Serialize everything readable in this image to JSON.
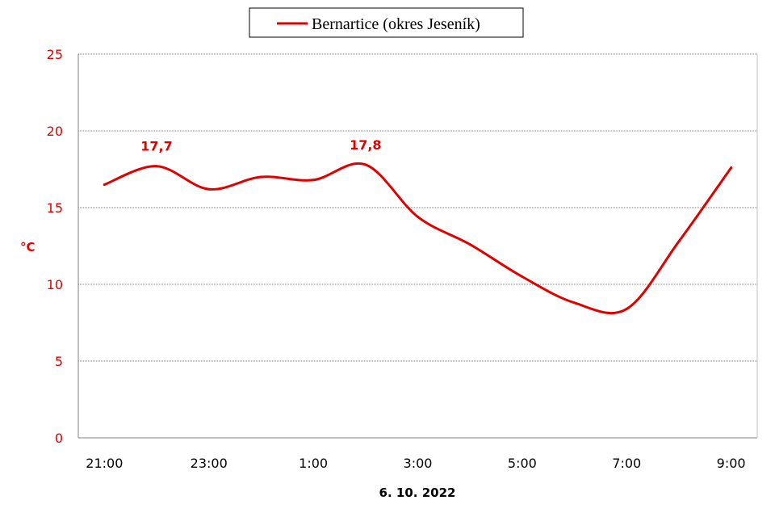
{
  "chart_data": {
    "type": "line",
    "legend": {
      "placement": "top-center"
    },
    "categories": [
      "21:00",
      "22:00",
      "23:00",
      "0:00",
      "1:00",
      "2:00",
      "3:00",
      "4:00",
      "5:00",
      "6:00",
      "7:00",
      "8:00",
      "9:00"
    ],
    "x_tick_labels": [
      "21:00",
      "23:00",
      "1:00",
      "3:00",
      "5:00",
      "7:00",
      "9:00"
    ],
    "series": [
      {
        "name": "Bernartice (okres Jeseník)",
        "color": "#e00000",
        "values": [
          16.5,
          17.7,
          16.2,
          17.0,
          16.8,
          17.8,
          14.4,
          12.6,
          10.5,
          8.8,
          8.4,
          12.8,
          17.6
        ]
      }
    ],
    "data_labels": [
      {
        "index": 1,
        "text": "17,7"
      },
      {
        "index": 5,
        "text": "17,8"
      }
    ],
    "ylabel": "°C",
    "xlabel": "6. 10. 2022",
    "ylim": [
      0,
      25
    ],
    "y_ticks": [
      0,
      5,
      10,
      15,
      20,
      25
    ],
    "grid": true,
    "colors": {
      "axis_text": "#e00000",
      "grid": "#808080",
      "line": "#e00000"
    }
  }
}
